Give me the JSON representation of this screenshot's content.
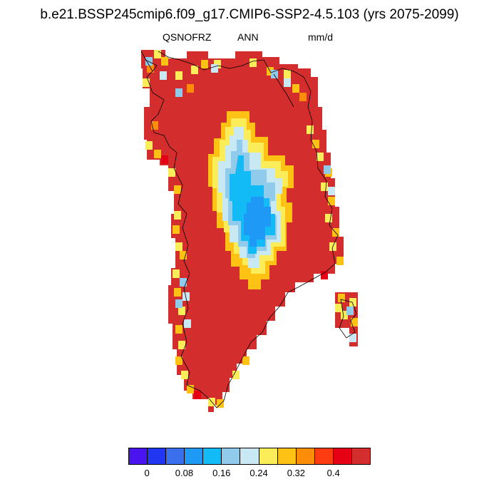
{
  "header": {
    "title": "b.e21.BSSP245cmip6.f09_g17.CMIP6-SSP2-4.5.103 (yrs 2075-2099)",
    "variable": "QSNOFRZ",
    "period": "ANN",
    "units": "mm/d"
  },
  "colorbar": {
    "colors": [
      "#4a14f0",
      "#2036f0",
      "#3a70ee",
      "#1e9af6",
      "#12baf6",
      "#90cbec",
      "#c8e8f4",
      "#fbed5a",
      "#fdc213",
      "#fd8c08",
      "#fd3c12",
      "#e60014",
      "#d42d2d"
    ],
    "tick_labels": [
      "0",
      "0.08",
      "0.16",
      "0.24",
      "0.32",
      "0.4"
    ]
  },
  "map": {
    "land_color": "#d42d2d",
    "coastline_color": "#000000",
    "interior_min_color": "#1e9af6",
    "interior_core_color": "#12baf6",
    "interior_shelf_color": "#90cbec",
    "interior_edge_color": "#c8e8f4",
    "margin_yellow": "#fbed5a",
    "margin_orange": "#fdc213",
    "margin_dark_orange": "#fd8c08",
    "margin_red": "#e60014"
  }
}
